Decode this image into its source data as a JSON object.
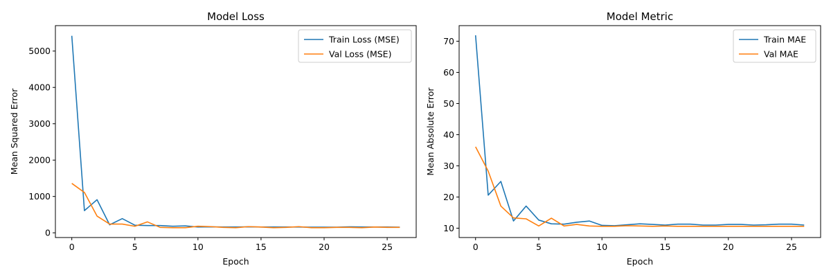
{
  "chart_data": [
    {
      "type": "line",
      "title": "Model Loss",
      "xlabel": "Epoch",
      "ylabel": "Mean Squared Error",
      "xlim": [
        -1.3,
        27.3
      ],
      "ylim": [
        -130,
        5700
      ],
      "xticks": [
        0,
        5,
        10,
        15,
        20,
        25
      ],
      "yticks": [
        0,
        1000,
        2000,
        3000,
        4000,
        5000
      ],
      "grid": false,
      "legend_position": "top-right",
      "x": [
        0,
        1,
        2,
        3,
        4,
        5,
        6,
        7,
        8,
        9,
        10,
        11,
        12,
        13,
        14,
        15,
        16,
        17,
        18,
        19,
        20,
        21,
        22,
        23,
        24,
        25,
        26
      ],
      "series": [
        {
          "name": "Train Loss (MSE)",
          "color": "#1f77b4",
          "values": [
            5420,
            610,
            910,
            220,
            390,
            210,
            200,
            200,
            180,
            190,
            160,
            165,
            160,
            160,
            165,
            160,
            160,
            160,
            160,
            155,
            155,
            155,
            165,
            160,
            160,
            160,
            155
          ]
        },
        {
          "name": "Val Loss (MSE)",
          "color": "#ff7f0e",
          "values": [
            1360,
            1110,
            460,
            240,
            240,
            180,
            300,
            150,
            140,
            140,
            180,
            170,
            150,
            140,
            170,
            160,
            140,
            150,
            170,
            140,
            140,
            150,
            150,
            140,
            160,
            150,
            150
          ]
        }
      ]
    },
    {
      "type": "line",
      "title": "Model Metric",
      "xlabel": "Epoch",
      "ylabel": "Mean Absolute Error",
      "xlim": [
        -1.3,
        27.3
      ],
      "ylim": [
        7.0,
        75.0
      ],
      "xticks": [
        0,
        5,
        10,
        15,
        20,
        25
      ],
      "yticks": [
        10,
        20,
        30,
        40,
        50,
        60,
        70
      ],
      "grid": false,
      "legend_position": "top-right",
      "x": [
        0,
        1,
        2,
        3,
        4,
        5,
        6,
        7,
        8,
        9,
        10,
        11,
        12,
        13,
        14,
        15,
        16,
        17,
        18,
        19,
        20,
        21,
        22,
        23,
        24,
        25,
        26
      ],
      "series": [
        {
          "name": "Train MAE",
          "color": "#1f77b4",
          "values": [
            71.9,
            20.6,
            25.0,
            12.3,
            17.1,
            12.6,
            11.4,
            11.3,
            11.9,
            12.3,
            10.9,
            10.8,
            11.1,
            11.4,
            11.2,
            11.0,
            11.3,
            11.3,
            11.0,
            11.0,
            11.2,
            11.2,
            11.0,
            11.1,
            11.3,
            11.3,
            11.0
          ]
        },
        {
          "name": "Val MAE",
          "color": "#ff7f0e",
          "values": [
            36.1,
            28.3,
            17.1,
            13.3,
            13.0,
            10.7,
            13.2,
            10.7,
            11.2,
            10.7,
            10.6,
            10.6,
            10.8,
            10.7,
            10.6,
            10.7,
            10.6,
            10.6,
            10.6,
            10.6,
            10.6,
            10.6,
            10.6,
            10.6,
            10.6,
            10.6,
            10.6
          ]
        }
      ]
    }
  ]
}
